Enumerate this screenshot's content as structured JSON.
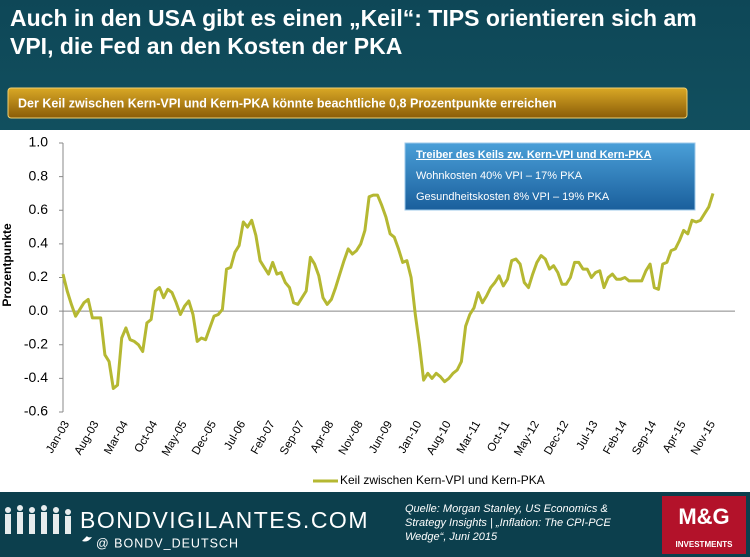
{
  "chart_data": {
    "type": "line",
    "title": "Auch in den USA gibt es einen „Keil“: TIPS orientieren sich am VPI, die Fed an den Kosten der PKA",
    "subtitle": "Der Keil zwischen Kern-VPI und Kern-PKA könnte beachtliche 0,8 Prozentpunkte erreichen",
    "y_label": "Prozentpunkte",
    "categories": [
      "Jan-03",
      null,
      null,
      null,
      null,
      null,
      null,
      "Aug-03",
      null,
      null,
      null,
      null,
      null,
      null,
      "Mar-04",
      null,
      null,
      null,
      null,
      null,
      null,
      "Oct-04",
      null,
      null,
      null,
      null,
      null,
      null,
      "May-05",
      null,
      null,
      null,
      null,
      null,
      null,
      "Dec-05",
      null,
      null,
      null,
      null,
      null,
      null,
      "Jul-06",
      null,
      null,
      null,
      null,
      null,
      null,
      "Feb-07",
      null,
      null,
      null,
      null,
      null,
      null,
      "Sep-07",
      null,
      null,
      null,
      null,
      null,
      null,
      "Apr-08",
      null,
      null,
      null,
      null,
      null,
      null,
      "Nov-08",
      null,
      null,
      null,
      null,
      null,
      null,
      "Jun-09",
      null,
      null,
      null,
      null,
      null,
      null,
      "Jan-10",
      null,
      null,
      null,
      null,
      null,
      null,
      "Aug-10",
      null,
      null,
      null,
      null,
      null,
      null,
      "Mar-11",
      null,
      null,
      null,
      null,
      null,
      null,
      "Oct-11",
      null,
      null,
      null,
      null,
      null,
      null,
      "May-12",
      null,
      null,
      null,
      null,
      null,
      null,
      "Dec-12",
      null,
      null,
      null,
      null,
      null,
      null,
      "Jul-13",
      null,
      null,
      null,
      null,
      null,
      null,
      "Feb-14",
      null,
      null,
      null,
      null,
      null,
      null,
      "Sep-14",
      null,
      null,
      null,
      null,
      null,
      null,
      "Apr-15",
      null,
      null,
      null,
      null,
      null,
      null,
      "Nov-15",
      null
    ],
    "series": [
      {
        "name": "Keil zwischen Kern-VPI und Kern-PKA",
        "color": "#b5b832",
        "values": [
          0.22,
          0.12,
          0.04,
          -0.03,
          0.01,
          0.05,
          0.07,
          -0.04,
          -0.04,
          -0.04,
          -0.26,
          -0.3,
          -0.46,
          -0.44,
          -0.16,
          -0.1,
          -0.17,
          -0.18,
          -0.2,
          -0.24,
          -0.07,
          -0.05,
          0.12,
          0.14,
          0.08,
          0.13,
          0.11,
          0.05,
          -0.02,
          0.03,
          0.06,
          -0.02,
          -0.18,
          -0.16,
          -0.17,
          -0.1,
          -0.03,
          -0.02,
          0.01,
          0.25,
          0.26,
          0.35,
          0.39,
          0.53,
          0.5,
          0.54,
          0.45,
          0.3,
          0.26,
          0.22,
          0.29,
          0.22,
          0.23,
          0.17,
          0.14,
          0.05,
          0.04,
          0.08,
          0.12,
          0.32,
          0.28,
          0.21,
          0.08,
          0.04,
          0.07,
          0.14,
          0.22,
          0.3,
          0.37,
          0.34,
          0.36,
          0.4,
          0.48,
          0.68,
          0.69,
          0.69,
          0.63,
          0.56,
          0.46,
          0.44,
          0.37,
          0.29,
          0.3,
          0.2,
          -0.02,
          -0.2,
          -0.41,
          -0.37,
          -0.4,
          -0.37,
          -0.39,
          -0.42,
          -0.4,
          -0.37,
          -0.35,
          -0.3,
          -0.09,
          -0.02,
          0.02,
          0.11,
          0.05,
          0.09,
          0.14,
          0.17,
          0.21,
          0.15,
          0.19,
          0.3,
          0.31,
          0.28,
          0.17,
          0.14,
          0.22,
          0.29,
          0.33,
          0.31,
          0.25,
          0.27,
          0.23,
          0.16,
          0.16,
          0.2,
          0.29,
          0.29,
          0.25,
          0.25,
          0.2,
          0.23,
          0.24,
          0.14,
          0.2,
          0.22,
          0.19,
          0.19,
          0.2,
          0.18,
          0.18,
          0.18,
          0.18,
          0.24,
          0.28,
          0.14,
          0.13,
          0.28,
          0.29,
          0.36,
          0.37,
          0.42,
          0.48,
          0.46,
          0.54,
          0.53,
          0.54,
          0.58,
          0.62,
          0.7
        ]
      }
    ],
    "ylim": [
      -0.6,
      1.0
    ],
    "yticks": [
      -0.6,
      -0.4,
      -0.2,
      {
        "value": 0,
        "label": "0.0"
      },
      0.2,
      0.4,
      0.6,
      0.8,
      {
        "value": 1,
        "label": "1.0"
      }
    ],
    "grid": false,
    "legend": "bottom",
    "annotation": {
      "title": "Treiber des Keils zw. Kern-VPI und Kern-PKA",
      "lines": [
        "Wohnkosten 40% VPI – 17% PKA",
        "Gesundheitskosten 8% VPI – 19% PKA"
      ]
    }
  },
  "footer": {
    "site": "BONDVIGILANTES.COM",
    "twitter": "@ BONDV_DEUTSCH",
    "source": [
      "Quelle: Morgan Stanley, US Economics &",
      "Strategy Insights | „Inflation: The CPI-PCE",
      "Wedge“, Juni 2015"
    ],
    "logo": "M&G",
    "logo_sub": "INVESTMENTS"
  }
}
